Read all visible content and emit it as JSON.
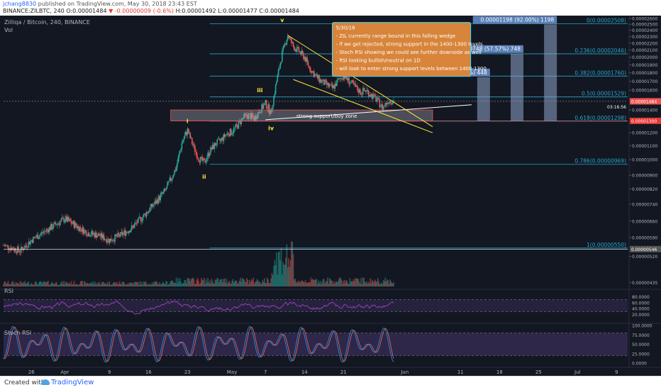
{
  "header": {
    "user": "jchang8830",
    "published": "published on TradingView.com, May 30, 2018 23:43 EST",
    "symbol": "BINANCE:ZILBTC, 240",
    "open": "O:0.00001484",
    "change": "-0.00000009 (-0.6%)",
    "high": "H:0.00001492",
    "low": "L:0.00001477",
    "close": "C:0.00001484"
  },
  "footer": {
    "created": "Created with",
    "brand": "TradingView"
  },
  "colors": {
    "background": "#131722",
    "candle_up": "#26a69a",
    "candle_down": "#ef5350",
    "fib": "#26a6c4",
    "wedge": "#ffeb3b",
    "note_bg": "#d8843a",
    "note_border": "#4dd0e1",
    "target": "#90a4c8",
    "support": "#ef5350",
    "rsi": "#a648c8",
    "stoch_k": "#2196f3",
    "stoch_d": "#ef6c5a"
  },
  "chart_data": {
    "type": "candlestick",
    "title": "Zilliqa / Bitcoin, 240, BINANCE",
    "volume_label": "Vol",
    "y_scale": "log",
    "ylim": [
      4.2e-06,
      2.6e-05
    ],
    "y_ticks": [
      "0.00002600",
      "0.00002500",
      "0.00002400",
      "0.00002300",
      "0.00002200",
      "0.00002100",
      "0.00002000",
      "0.00001900",
      "0.00001800",
      "0.00001700",
      "0.00001600",
      "0.00001500",
      "0.00001400",
      "0.00001200",
      "0.00001100",
      "0.00001000",
      "0.00000900",
      "0.00000820",
      "0.00000740",
      "0.00000660",
      "0.00000590",
      "0.00000520",
      "0.00000435"
    ],
    "x_ticks": [
      "26",
      "Apr",
      "9",
      "16",
      "23",
      "May",
      "7",
      "14",
      "21",
      "Jun",
      "11",
      "18",
      "25",
      "Jul",
      "9"
    ],
    "x_tick_days": [
      -5,
      1,
      9,
      16,
      23,
      31,
      37,
      44,
      51,
      62,
      72,
      79,
      86,
      93,
      100
    ],
    "x_range_days": [
      -10,
      102
    ],
    "last_price": "0.00001484",
    "last_price_value": 1.484e-05,
    "countdown": "03:16:56",
    "support_price": "0.00001300",
    "support_value": 1.3e-05,
    "extra_price": "0.00000546",
    "extra_value": 5.46e-06,
    "price_path": [
      [
        -10,
        5.6e-06
      ],
      [
        -7,
        5.4e-06
      ],
      [
        -5,
        5.8e-06
      ],
      [
        -3,
        6.1e-06
      ],
      [
        -1,
        6.4e-06
      ],
      [
        1,
        6.7e-06
      ],
      [
        3,
        6.4e-06
      ],
      [
        5,
        6.1e-06
      ],
      [
        7,
        6e-06
      ],
      [
        9,
        5.8e-06
      ],
      [
        11,
        6e-06
      ],
      [
        13,
        6.3e-06
      ],
      [
        15,
        6.8e-06
      ],
      [
        17,
        7.4e-06
      ],
      [
        19,
        8.1e-06
      ],
      [
        21,
        9.5e-06
      ],
      [
        22,
        1.12e-05
      ],
      [
        23,
        1.22e-05
      ],
      [
        24,
        1.1e-05
      ],
      [
        25,
        1.01e-05
      ],
      [
        26,
        9.8e-06
      ],
      [
        27,
        1.06e-05
      ],
      [
        28,
        1.11e-05
      ],
      [
        29,
        1.14e-05
      ],
      [
        30,
        1.19e-05
      ],
      [
        31,
        1.21e-05
      ],
      [
        32,
        1.26e-05
      ],
      [
        33,
        1.33e-05
      ],
      [
        34,
        1.35e-05
      ],
      [
        35,
        1.32e-05
      ],
      [
        36,
        1.4e-05
      ],
      [
        37,
        1.46e-05
      ],
      [
        38,
        1.38e-05
      ],
      [
        39,
        1.7e-05
      ],
      [
        40,
        2.05e-05
      ],
      [
        41,
        2.32e-05
      ],
      [
        42,
        2.15e-05
      ],
      [
        43,
        2.08e-05
      ],
      [
        44,
        2e-05
      ],
      [
        45,
        1.85e-05
      ],
      [
        46,
        1.76e-05
      ],
      [
        47,
        1.7e-05
      ],
      [
        48,
        1.66e-05
      ],
      [
        49,
        1.62e-05
      ],
      [
        50,
        1.7e-05
      ],
      [
        51,
        1.77e-05
      ],
      [
        52,
        1.7e-05
      ],
      [
        53,
        1.64e-05
      ],
      [
        54,
        1.58e-05
      ],
      [
        55,
        1.6e-05
      ],
      [
        56,
        1.55e-05
      ],
      [
        57,
        1.5e-05
      ],
      [
        58,
        1.42e-05
      ],
      [
        59,
        1.49e-05
      ],
      [
        60,
        1.49e-05
      ]
    ],
    "fib_levels": [
      {
        "label": "0(0.00002508)",
        "value": 2.508e-05
      },
      {
        "label": "0.236(0.00002046)",
        "value": 2.046e-05
      },
      {
        "label": "0.382(0.00001760)",
        "value": 1.76e-05
      },
      {
        "label": "0.5(0.00001529)",
        "value": 1.529e-05
      },
      {
        "label": "0.618(0.00001298)",
        "value": 1.298e-05
      },
      {
        "label": "0.786(0.00000969)",
        "value": 9.69e-06
      },
      {
        "label": "1(0.00000550)",
        "value": 5.5e-06
      }
    ],
    "targets": [
      {
        "label": "0.00000448 (34.37%) 448",
        "day": 75,
        "value": 1.748e-05
      },
      {
        "label": "0.00000748 (57.57%) 748",
        "day": 81,
        "value": 2.048e-05
      },
      {
        "label": "0.00001198 (92.00%) 1198",
        "day": 87,
        "value": 2.498e-05
      }
    ],
    "wave_labels": [
      {
        "text": "i",
        "day": 23,
        "value": 1.28e-05
      },
      {
        "text": "ii",
        "day": 26,
        "value": 8.8e-06
      },
      {
        "text": "iii",
        "day": 36,
        "value": 1.58e-05
      },
      {
        "text": "iv",
        "day": 38,
        "value": 1.22e-05
      },
      {
        "text": "v",
        "day": 40,
        "value": 2.54e-05
      }
    ],
    "zone_label": "strong support/buy zone",
    "annotation": [
      "5/30/18",
      "- ZIL currently range bound in this falling wedge",
      "- if we get rejected, strong support in the 1400-1300 levels",
      "- Stoch RSI showing we could see further downside as well",
      "- RSI looking bullish/neutral on 1D",
      "- will look to enter strong support levels between 1400-1300"
    ],
    "rsi": {
      "label": "RSI",
      "ticks": [
        "80.0000",
        "60.0000",
        "40.0000",
        "20.0000"
      ],
      "tick_values": [
        80,
        60,
        40,
        20
      ]
    },
    "stoch_rsi": {
      "label": "Stoch RSI",
      "ticks": [
        "100.0000",
        "75.0000",
        "50.0000",
        "25.0000",
        "0.0000"
      ],
      "tick_values": [
        100,
        75,
        50,
        25,
        0
      ]
    }
  }
}
